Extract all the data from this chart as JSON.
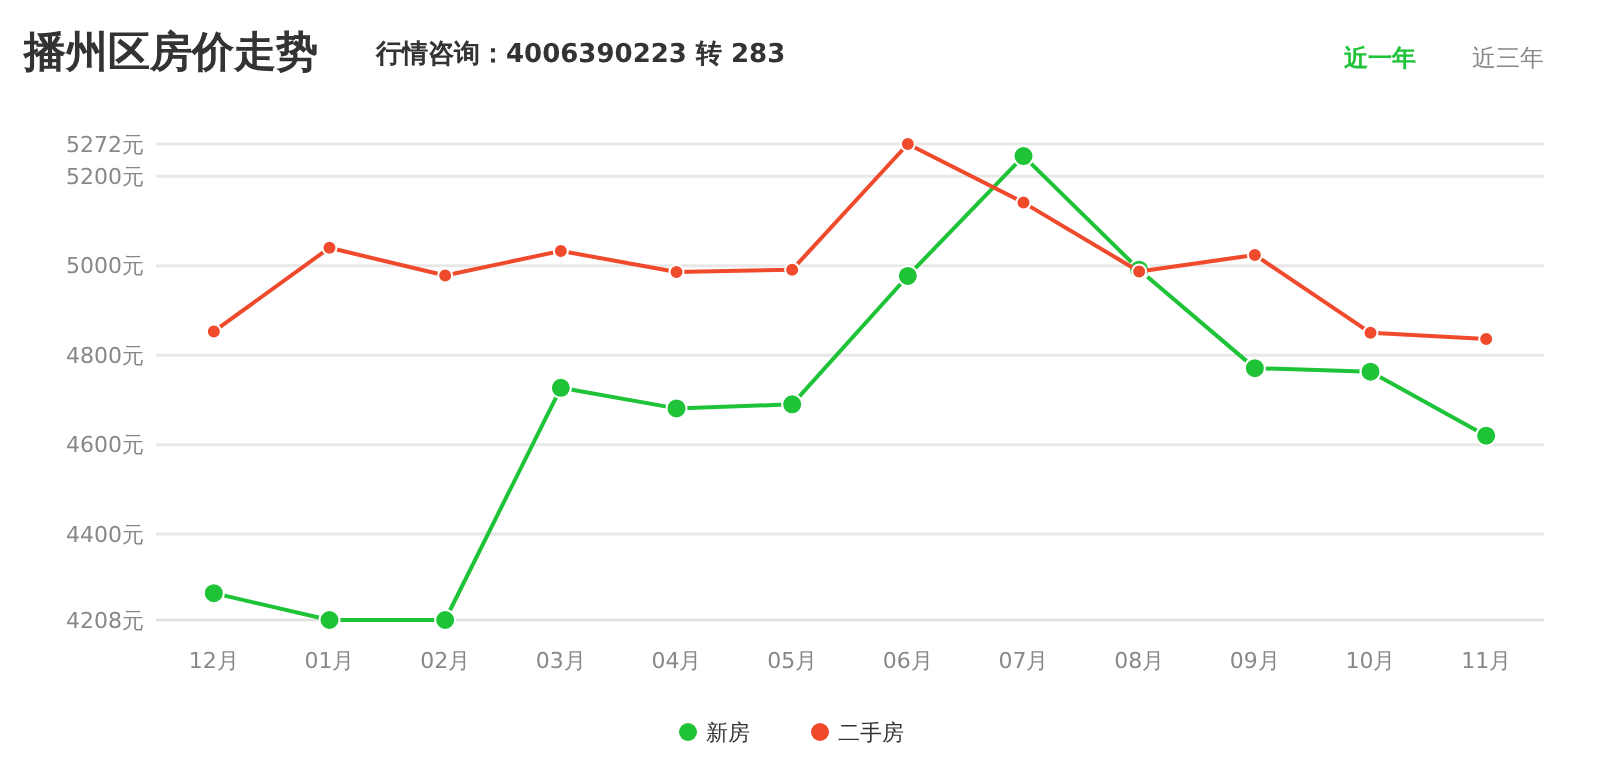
{
  "chart_data": {
    "type": "line",
    "title": "播州区房价走势",
    "subtitle": "行情咨询：4006390223 转 283",
    "annotations": [
      "近一年",
      "近三年"
    ],
    "categories": [
      "12月",
      "01月",
      "02月",
      "03月",
      "04月",
      "05月",
      "06月",
      "07月",
      "08月",
      "09月",
      "10月",
      "11月"
    ],
    "series": [
      {
        "name": "新房",
        "color": "#1ec337",
        "values": [
          4268,
          4208,
          4208,
          4727,
          4681,
          4690,
          4977,
          5245,
          4991,
          4771,
          4763,
          4620
        ]
      },
      {
        "name": "二手房",
        "color": "#f04a2d",
        "values": [
          4853,
          5040,
          4978,
          5033,
          4986,
          4991,
          5272,
          5141,
          4987,
          5024,
          4850,
          4836
        ]
      }
    ],
    "ylim": [
      4208,
      5272
    ],
    "yticks": [
      {
        "value": 4208,
        "label": "4208元"
      },
      {
        "value": 4400,
        "label": "4400元"
      },
      {
        "value": 4600,
        "label": "4600元"
      },
      {
        "value": 4800,
        "label": "4800元"
      },
      {
        "value": 5000,
        "label": "5000元"
      },
      {
        "value": 5200,
        "label": "5200元"
      },
      {
        "value": 5272,
        "label": "5272元"
      }
    ],
    "grid": "y",
    "legend": "bottom",
    "marker": "circle",
    "line_style": "solid"
  }
}
